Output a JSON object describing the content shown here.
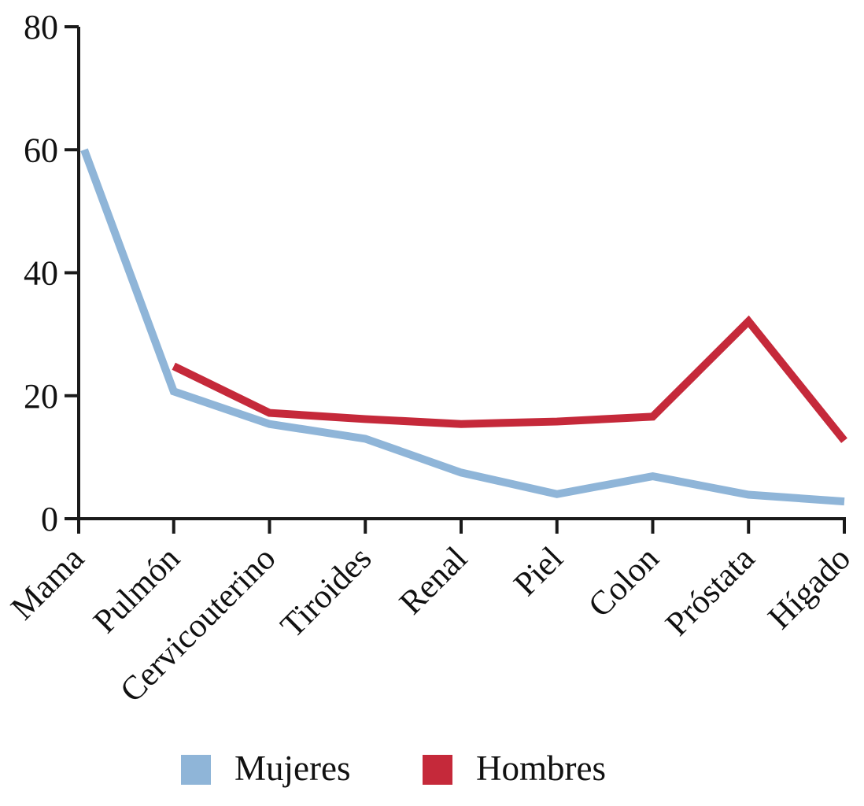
{
  "figure": {
    "background_color": "#ffffff",
    "axis_color": "#1a1a1a",
    "text_color": "#111111"
  },
  "chart_data": {
    "type": "line",
    "title": "",
    "xlabel": "",
    "ylabel": "",
    "categories": [
      "Mama",
      "Pulmón",
      "Cervicouterino",
      "Tiroides",
      "Renal",
      "Piel",
      "Colon",
      "Próstata",
      "Hígado"
    ],
    "series": [
      {
        "name": "Mujeres",
        "color": "#8FB5D8",
        "values": [
          60,
          20.7,
          15.4,
          13,
          7.5,
          4,
          6.9,
          3.9,
          2.8
        ]
      },
      {
        "name": "Hombres",
        "color": "#C5293A",
        "values": [
          null,
          24.8,
          17.2,
          16.2,
          15.4,
          15.8,
          16.6,
          32.1,
          12.7
        ]
      }
    ],
    "ylim": [
      0,
      80
    ],
    "yticks": [
      0,
      20,
      40,
      60,
      80
    ],
    "grid": false,
    "legend_position": "bottom",
    "x_label_rotation": -45,
    "line_width": 10
  }
}
